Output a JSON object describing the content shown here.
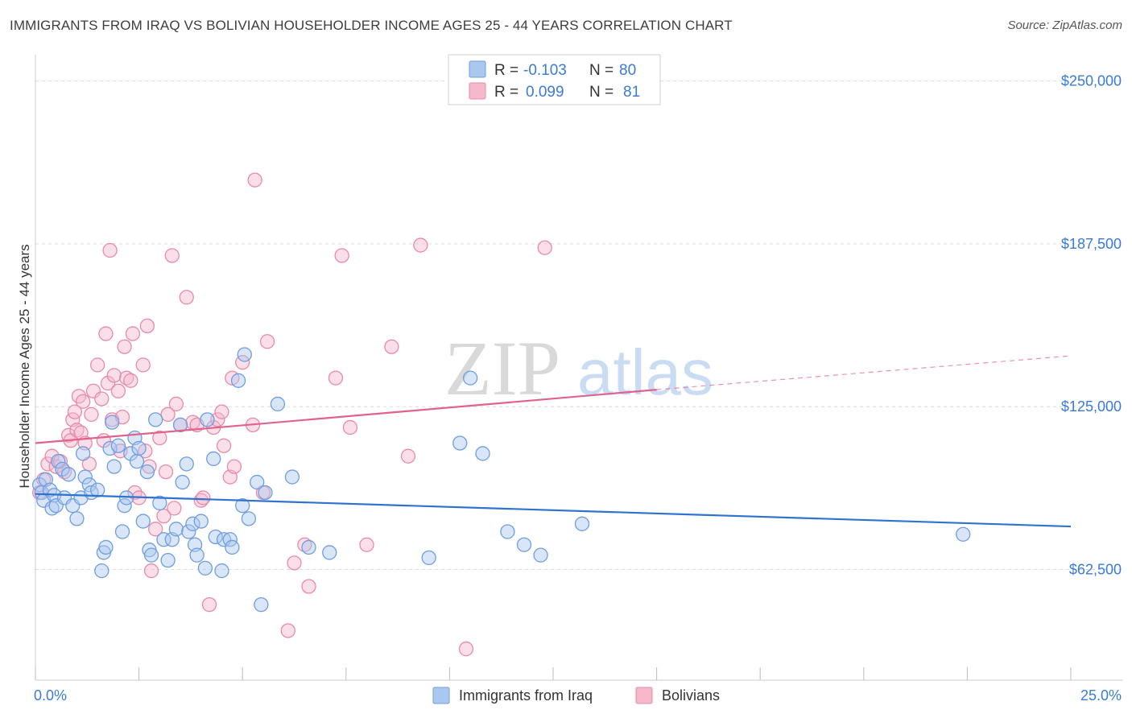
{
  "title": "IMMIGRANTS FROM IRAQ VS BOLIVIAN HOUSEHOLDER INCOME AGES 25 - 44 YEARS CORRELATION CHART",
  "source": "Source: ZipAtlas.com",
  "watermark": {
    "zip": "ZIP",
    "atlas": "atlas"
  },
  "colors": {
    "iraq_fill": "#aac8ef",
    "iraq_stroke": "#6f9de0",
    "iraq_line": "#2f72d0",
    "bolivia_fill": "#f5b9cb",
    "bolivia_stroke": "#e88aa8",
    "bolivia_line": "#e0628d",
    "axis_text": "#3a7bd5",
    "grid": "#dddddd"
  },
  "legend": {
    "rows": [
      {
        "r_label": "R =",
        "r_value": "-0.103",
        "n_label": "N =",
        "n_value": "80"
      },
      {
        "r_label": "R =",
        "r_value": "0.099",
        "n_label": "N =",
        "n_value": "81"
      }
    ]
  },
  "bottom_legend": [
    "Immigrants from Iraq",
    "Bolivians"
  ],
  "chart_data": {
    "type": "scatter",
    "title": "IMMIGRANTS FROM IRAQ VS BOLIVIAN HOUSEHOLDER INCOME AGES 25 - 44 YEARS CORRELATION CHART",
    "xlabel": "",
    "ylabel": "Householder Income Ages 25 - 44 years",
    "xlim": [
      0,
      25
    ],
    "ylim": [
      20000,
      257000
    ],
    "x_tick_labels": [
      "0.0%",
      "25.0%"
    ],
    "y_ticks": [
      62500,
      125000,
      187500,
      250000
    ],
    "y_tick_labels": [
      "$62,500",
      "$125,000",
      "$187,500",
      "$250,000"
    ],
    "grid": true,
    "legend_placement": "top-center",
    "series": [
      {
        "name": "Immigrants from Iraq",
        "trend": {
          "x": [
            0,
            25
          ],
          "y": [
            91500,
            79000
          ]
        },
        "points": [
          [
            0.1,
            95000
          ],
          [
            0.15,
            92000
          ],
          [
            0.2,
            89000
          ],
          [
            0.25,
            97000
          ],
          [
            0.35,
            93000
          ],
          [
            0.4,
            86000
          ],
          [
            0.45,
            91000
          ],
          [
            0.5,
            87000
          ],
          [
            0.55,
            104000
          ],
          [
            0.65,
            101000
          ],
          [
            0.7,
            90000
          ],
          [
            0.8,
            99000
          ],
          [
            0.9,
            87000
          ],
          [
            1.0,
            82000
          ],
          [
            1.1,
            90000
          ],
          [
            1.15,
            107000
          ],
          [
            1.2,
            98000
          ],
          [
            1.3,
            95000
          ],
          [
            1.35,
            92000
          ],
          [
            1.5,
            93000
          ],
          [
            1.6,
            62000
          ],
          [
            1.65,
            69000
          ],
          [
            1.7,
            71000
          ],
          [
            1.8,
            109000
          ],
          [
            1.85,
            119000
          ],
          [
            1.9,
            102000
          ],
          [
            2.0,
            110000
          ],
          [
            2.1,
            77000
          ],
          [
            2.15,
            87000
          ],
          [
            2.2,
            90000
          ],
          [
            2.3,
            107000
          ],
          [
            2.4,
            113000
          ],
          [
            2.45,
            104000
          ],
          [
            2.5,
            109000
          ],
          [
            2.6,
            81000
          ],
          [
            2.7,
            100000
          ],
          [
            2.75,
            70000
          ],
          [
            2.8,
            68000
          ],
          [
            2.9,
            120000
          ],
          [
            3.0,
            88000
          ],
          [
            3.1,
            74000
          ],
          [
            3.2,
            66000
          ],
          [
            3.3,
            74000
          ],
          [
            3.4,
            78000
          ],
          [
            3.5,
            118000
          ],
          [
            3.55,
            96000
          ],
          [
            3.65,
            103000
          ],
          [
            3.7,
            77000
          ],
          [
            3.8,
            80000
          ],
          [
            3.85,
            72000
          ],
          [
            3.9,
            68000
          ],
          [
            4.0,
            81000
          ],
          [
            4.1,
            63000
          ],
          [
            4.15,
            120000
          ],
          [
            4.3,
            105000
          ],
          [
            4.35,
            75000
          ],
          [
            4.5,
            62000
          ],
          [
            4.55,
            74000
          ],
          [
            4.7,
            74000
          ],
          [
            4.75,
            71000
          ],
          [
            4.9,
            135000
          ],
          [
            5.0,
            87000
          ],
          [
            5.05,
            145000
          ],
          [
            5.15,
            82000
          ],
          [
            5.35,
            96000
          ],
          [
            5.45,
            49000
          ],
          [
            5.55,
            92000
          ],
          [
            5.85,
            126000
          ],
          [
            6.2,
            98000
          ],
          [
            6.6,
            71000
          ],
          [
            7.1,
            69000
          ],
          [
            9.5,
            67000
          ],
          [
            10.25,
            111000
          ],
          [
            10.5,
            136000
          ],
          [
            10.8,
            107000
          ],
          [
            11.4,
            77000
          ],
          [
            11.8,
            72000
          ],
          [
            12.2,
            68000
          ],
          [
            13.2,
            80000
          ],
          [
            22.4,
            76000
          ]
        ]
      },
      {
        "name": "Bolivians",
        "trend": {
          "x": [
            0,
            15
          ],
          "y": [
            111000,
            131500
          ]
        },
        "trend_dashed": {
          "x": [
            15,
            25
          ],
          "y": [
            131500,
            144500
          ]
        },
        "points": [
          [
            0.1,
            92000
          ],
          [
            0.2,
            97000
          ],
          [
            0.3,
            103000
          ],
          [
            0.4,
            106000
          ],
          [
            0.5,
            102000
          ],
          [
            0.6,
            104000
          ],
          [
            0.7,
            100000
          ],
          [
            0.8,
            114000
          ],
          [
            0.85,
            112000
          ],
          [
            0.9,
            120000
          ],
          [
            0.95,
            123000
          ],
          [
            1.0,
            116000
          ],
          [
            1.05,
            129000
          ],
          [
            1.1,
            115000
          ],
          [
            1.15,
            127000
          ],
          [
            1.2,
            111000
          ],
          [
            1.3,
            103000
          ],
          [
            1.35,
            122000
          ],
          [
            1.4,
            131000
          ],
          [
            1.5,
            141000
          ],
          [
            1.6,
            128000
          ],
          [
            1.65,
            112000
          ],
          [
            1.7,
            153000
          ],
          [
            1.75,
            134000
          ],
          [
            1.8,
            185000
          ],
          [
            1.85,
            120000
          ],
          [
            1.9,
            137000
          ],
          [
            2.0,
            131000
          ],
          [
            2.05,
            108000
          ],
          [
            2.1,
            121000
          ],
          [
            2.15,
            148000
          ],
          [
            2.2,
            136000
          ],
          [
            2.3,
            135000
          ],
          [
            2.35,
            153000
          ],
          [
            2.4,
            92000
          ],
          [
            2.5,
            90000
          ],
          [
            2.6,
            141000
          ],
          [
            2.65,
            108000
          ],
          [
            2.7,
            156000
          ],
          [
            2.75,
            102000
          ],
          [
            2.8,
            62000
          ],
          [
            2.9,
            78000
          ],
          [
            3.0,
            113000
          ],
          [
            3.1,
            83000
          ],
          [
            3.15,
            100000
          ],
          [
            3.2,
            122000
          ],
          [
            3.3,
            183000
          ],
          [
            3.35,
            86000
          ],
          [
            3.4,
            126000
          ],
          [
            3.5,
            118000
          ],
          [
            3.65,
            167000
          ],
          [
            3.8,
            119000
          ],
          [
            3.9,
            118000
          ],
          [
            4.0,
            89000
          ],
          [
            4.05,
            90000
          ],
          [
            4.2,
            49000
          ],
          [
            4.3,
            117000
          ],
          [
            4.4,
            120000
          ],
          [
            4.5,
            123000
          ],
          [
            4.55,
            110000
          ],
          [
            4.7,
            98000
          ],
          [
            4.75,
            136000
          ],
          [
            4.8,
            102000
          ],
          [
            5.0,
            142000
          ],
          [
            5.25,
            118000
          ],
          [
            5.5,
            92000
          ],
          [
            5.6,
            150000
          ],
          [
            6.1,
            39000
          ],
          [
            6.25,
            65000
          ],
          [
            6.5,
            72000
          ],
          [
            6.6,
            56000
          ],
          [
            7.25,
            136000
          ],
          [
            7.4,
            183000
          ],
          [
            7.6,
            117000
          ],
          [
            8.0,
            72000
          ],
          [
            8.6,
            148000
          ],
          [
            9.0,
            106000
          ],
          [
            10.4,
            32000
          ],
          [
            5.3,
            212000
          ],
          [
            9.3,
            187000
          ],
          [
            12.3,
            186000
          ]
        ]
      }
    ]
  }
}
